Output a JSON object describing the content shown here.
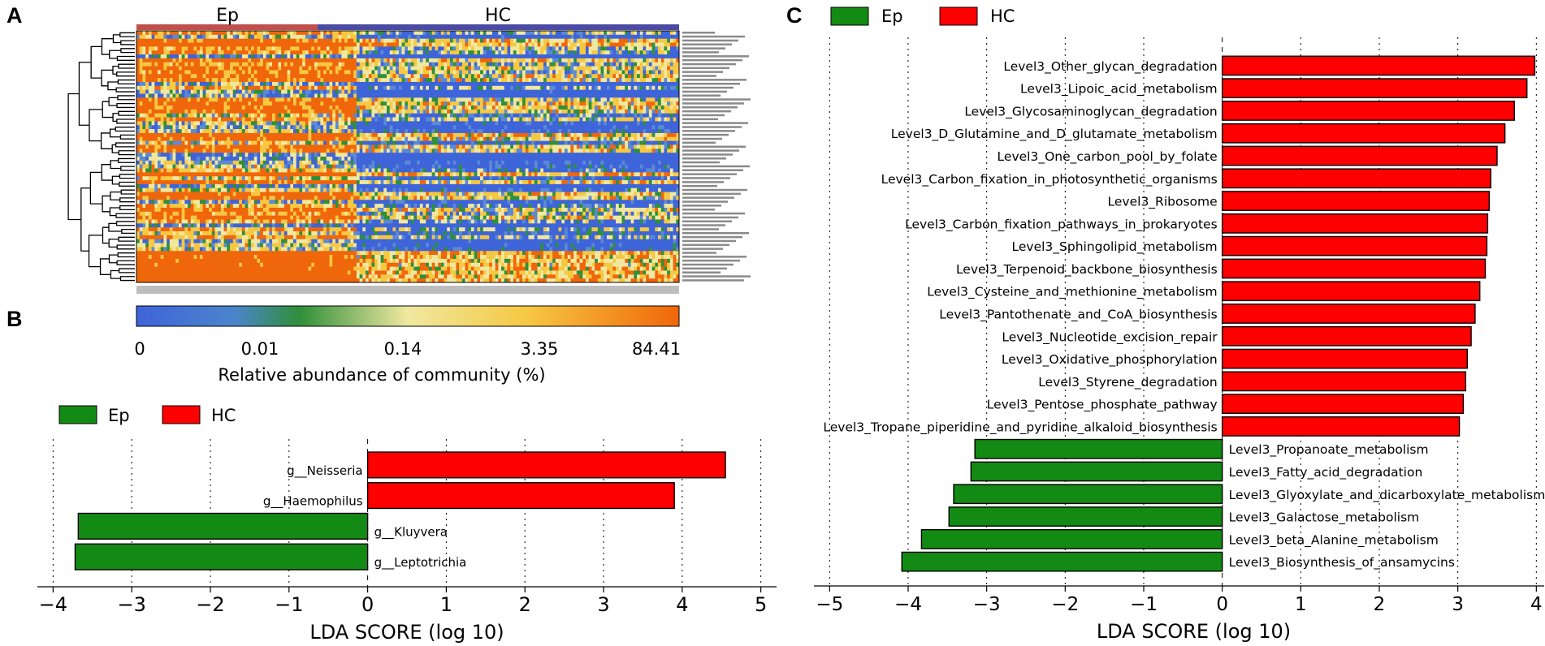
{
  "panels": {
    "a": "A",
    "b": "B",
    "c": "C"
  },
  "heatmap": {
    "groups": [
      "Ep",
      "HC"
    ],
    "group_colors": [
      "#c0504d",
      "#4b4ba3"
    ],
    "colorbar_ticks": [
      "0",
      "0.01",
      "0.14",
      "3.35",
      "84.41"
    ],
    "colorbar_label": "Relative abundance of community (%)",
    "colormap": [
      "#3e64d9",
      "#5b8ad4",
      "#2f8f3a",
      "#f0e8a0",
      "#f6c842",
      "#f0660a"
    ]
  },
  "legend": {
    "ep_label": "Ep",
    "hc_label": "HC",
    "ep_color": "#138a13",
    "hc_color": "#ff0000"
  },
  "chart_data": [
    {
      "type": "bar",
      "orientation": "horizontal",
      "panel": "B",
      "categories": [
        "g__Neisseria",
        "g__Haemophilus",
        "g__Kluyvera",
        "g__Leptotrichia"
      ],
      "values": [
        4.55,
        3.9,
        -3.68,
        -3.72
      ],
      "groups": [
        "HC",
        "HC",
        "Ep",
        "Ep"
      ],
      "xlabel": "LDA SCORE (log 10)",
      "xlim": [
        -4.2,
        5.2
      ],
      "xticks": [
        -4,
        -3,
        -2,
        -1,
        0,
        1,
        2,
        3,
        4,
        5
      ],
      "tick_labels": [
        "−4",
        "−3",
        "−2",
        "−1",
        "0",
        "1",
        "2",
        "3",
        "4",
        "5"
      ]
    },
    {
      "type": "bar",
      "orientation": "horizontal",
      "panel": "C",
      "categories": [
        "Level3_Other_glycan_degradation",
        "Level3_Lipoic_acid_metabolism",
        "Level3_Glycosaminoglycan_degradation",
        "Level3_D_Glutamine_and_D_glutamate_metabolism",
        "Level3_One_carbon_pool_by_folate",
        "Level3_Carbon_fixation_in_photosynthetic_organisms",
        "Level3_Ribosome",
        "Level3_Carbon_fixation_pathways_in_prokaryotes",
        "Level3_Sphingolipid_metabolism",
        "Level3_Terpenoid_backbone_biosynthesis",
        "Level3_Cysteine_and_methionine_metabolism",
        "Level3_Pantothenate_and_CoA_biosynthesis",
        "Level3_Nucleotide_excision_repair",
        "Level3_Oxidative_phosphorylation",
        "Level3_Styrene_degradation",
        "Level3_Pentose_phosphate_pathway",
        "Level3_Tropane_piperidine_and_pyridine_alkaloid_biosynthesis",
        "Level3_Propanoate_metabolism",
        "Level3_Fatty_acid_degradation",
        "Level3_Glyoxylate_and_dicarboxylate_metabolism",
        "Level3_Galactose_metabolism",
        "Level3_beta_Alanine_metabolism",
        "Level3_Biosynthesis_of_ansamycins"
      ],
      "values": [
        3.98,
        3.88,
        3.72,
        3.6,
        3.5,
        3.42,
        3.4,
        3.38,
        3.37,
        3.35,
        3.28,
        3.22,
        3.17,
        3.12,
        3.1,
        3.07,
        3.02,
        -3.15,
        -3.2,
        -3.42,
        -3.48,
        -3.83,
        -4.08
      ],
      "groups": [
        "HC",
        "HC",
        "HC",
        "HC",
        "HC",
        "HC",
        "HC",
        "HC",
        "HC",
        "HC",
        "HC",
        "HC",
        "HC",
        "HC",
        "HC",
        "HC",
        "HC",
        "Ep",
        "Ep",
        "Ep",
        "Ep",
        "Ep",
        "Ep"
      ],
      "xlabel": "LDA SCORE (log 10)",
      "xlim": [
        -5.2,
        4.1
      ],
      "xticks": [
        -5,
        -4,
        -3,
        -2,
        -1,
        0,
        1,
        2,
        3,
        4
      ],
      "tick_labels": [
        "−5",
        "−4",
        "−3",
        "−2",
        "−1",
        "0",
        "1",
        "2",
        "3",
        "4"
      ]
    }
  ]
}
